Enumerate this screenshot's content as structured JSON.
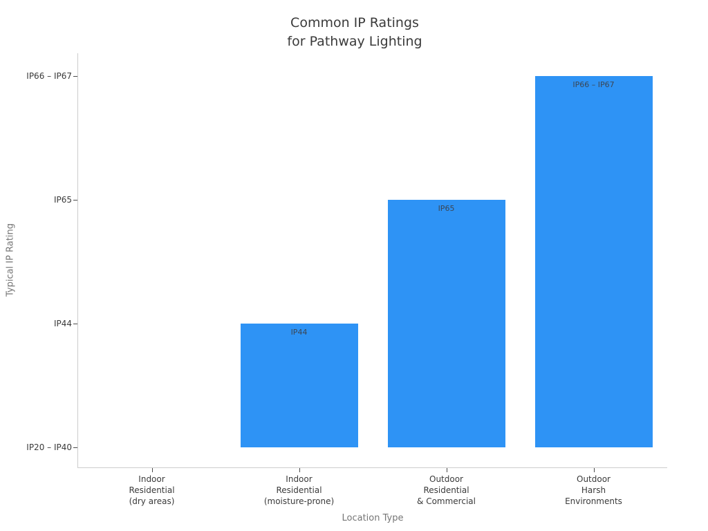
{
  "chart_data": {
    "type": "bar",
    "title": "Common IP Ratings\nfor Pathway Lighting",
    "xlabel": "Location Type",
    "ylabel": "Typical IP Rating",
    "categories": [
      "Indoor\nResidential\n(dry areas)",
      "Indoor\nResidential\n(moisture-prone)",
      "Outdoor\nResidential\n& Commercial",
      "Outdoor\nHarsh\nEnvironments"
    ],
    "values": [
      0,
      1,
      2,
      3
    ],
    "bar_value_labels": [
      "",
      "IP44",
      "IP65",
      "IP66 – IP67"
    ],
    "ytick_labels": [
      "IP20 – IP40",
      "IP44",
      "IP65",
      "IP66 – IP67"
    ],
    "ylim": [
      0,
      3.2
    ],
    "grid": false,
    "legend": null
  },
  "colors": {
    "bar": "#2E93F5",
    "title_text": "#3A3A3A",
    "tick_text": "#3A3A3A",
    "axis_title_text": "#757575",
    "bar_label_text": "#3B4654",
    "spine": "#CCCCCC",
    "tick_mark": "#4A4A4A",
    "background": "#FFFFFF"
  }
}
